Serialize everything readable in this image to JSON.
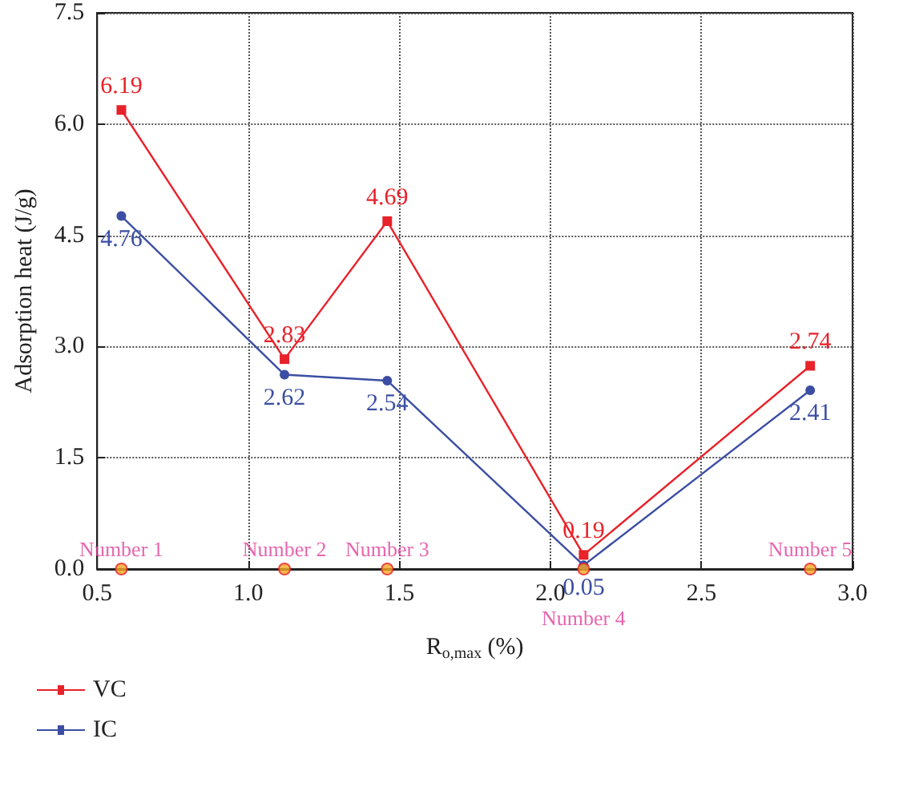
{
  "chart_data": {
    "type": "line",
    "xlabel": "R$_{o,max}$ (%)",
    "ylabel": "Adsorption heat (J/g)",
    "x": [
      0.58,
      1.12,
      1.46,
      2.11,
      2.86
    ],
    "series": [
      {
        "name": "VC",
        "color": "#e8222a",
        "marker": "square",
        "values": [
          6.19,
          2.83,
          4.69,
          0.19,
          2.74
        ],
        "value_labels": [
          "6.19",
          "2.83",
          "4.69",
          "0.19",
          "2.74"
        ]
      },
      {
        "name": "IC",
        "color": "#3b4ea3",
        "marker": "circle",
        "values": [
          4.76,
          2.62,
          2.54,
          0.05,
          2.41
        ],
        "value_labels": [
          "4.76",
          "2.62",
          "2.54",
          "0.05",
          "2.41"
        ]
      },
      {
        "type": "scatter",
        "color": "#f5a623",
        "marker": "circle",
        "values": [
          0,
          0,
          0,
          0,
          0
        ]
      }
    ],
    "annotations": [
      {
        "text": "Number 1",
        "x": 0.58,
        "y": 0
      },
      {
        "text": "Number 2",
        "x": 1.12,
        "y": 0
      },
      {
        "text": "Number 3",
        "x": 1.46,
        "y": 0
      },
      {
        "text": "Number 4",
        "x": 2.11,
        "y": 0
      },
      {
        "text": "Number 5",
        "x": 2.86,
        "y": 0
      }
    ],
    "xlim": [
      0.5,
      3.0
    ],
    "xticks": [
      0.5,
      {
        "value": 1,
        "label": "1.0"
      },
      1.5,
      {
        "value": 2,
        "label": "2.0"
      },
      2.5,
      {
        "value": 3,
        "label": "3.0"
      }
    ],
    "ylim": [
      0,
      7.5
    ],
    "yticks": [
      {
        "value": 0,
        "label": "0.0"
      },
      1.5,
      {
        "value": 3,
        "label": "3.0"
      },
      4.5,
      {
        "value": 6,
        "label": "6.0"
      },
      7.5
    ],
    "grid": true,
    "legend": "bottom left",
    "line_style": "solid"
  }
}
